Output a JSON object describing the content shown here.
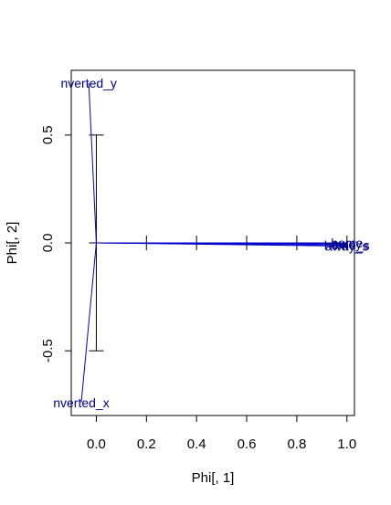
{
  "colors": {
    "background": "#ffffff",
    "axis": "#000000",
    "vectors": "#0000cc",
    "labels": "#00008b"
  },
  "chart_data": {
    "type": "scatter",
    "title": "",
    "xlabel": "Phi[, 1]",
    "ylabel": "Phi[, 2]",
    "xlim": [
      -0.1,
      1.03
    ],
    "ylim": [
      -0.8,
      0.8
    ],
    "xticks": [
      {
        "value": 0.0,
        "label": "0.0"
      },
      {
        "value": 0.2,
        "label": "0.2"
      },
      {
        "value": 0.4,
        "label": "0.4"
      },
      {
        "value": 0.6,
        "label": "0.6"
      },
      {
        "value": 0.8,
        "label": "0.8"
      },
      {
        "value": 1.0,
        "label": "1.0"
      }
    ],
    "yticks": [
      {
        "value": -0.5,
        "label": "-0.5"
      },
      {
        "value": 0.0,
        "label": "0.0"
      },
      {
        "value": 0.5,
        "label": "0.5"
      }
    ],
    "cross_axes": {
      "horizontal": {
        "y": 0.0,
        "x_from": 0.0,
        "x_to": 1.0,
        "ticks": [
          0.0,
          0.2,
          0.4,
          0.6,
          0.8,
          1.0
        ]
      },
      "vertical": {
        "x": 0.0,
        "y_from": -0.5,
        "y_to": 0.5,
        "ticks": [
          -0.5,
          0.0,
          0.5
        ]
      }
    },
    "points": [
      {
        "label": "inverted_y",
        "visible_text": "nverted_y",
        "x": -0.03,
        "y": 0.74
      },
      {
        "label": "inverted_x",
        "visible_text": "nverted_x",
        "x": -0.06,
        "y": -0.74
      },
      {
        "label": "home",
        "visible_text": "home",
        "x": 1.0,
        "y": 0.0
      },
      {
        "label": "away",
        "visible_text": "away",
        "x": 1.0,
        "y": -0.005
      },
      {
        "label": "home_s",
        "visible_text": "home_s",
        "x": 1.0,
        "y": -0.01
      },
      {
        "label": "away_s",
        "visible_text": "away_s",
        "x": 1.0,
        "y": -0.015
      }
    ]
  }
}
